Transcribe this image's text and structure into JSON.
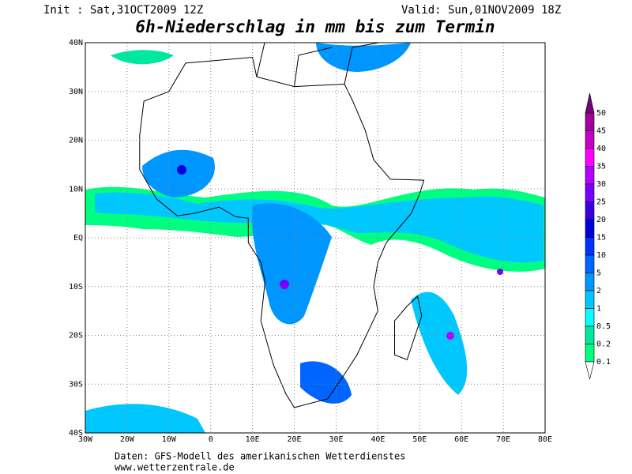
{
  "header": {
    "init": "Init : Sat,31OCT2009 12Z",
    "valid": "Valid: Sun,01NOV2009 18Z",
    "title": "6h-Niederschlag in mm bis zum Termin"
  },
  "map": {
    "x_labels": [
      "30W",
      "20W",
      "10W",
      "0",
      "10E",
      "20E",
      "30E",
      "40E",
      "50E",
      "60E",
      "70E",
      "80E"
    ],
    "y_labels": [
      "40N",
      "30N",
      "20N",
      "10N",
      "EQ",
      "10S",
      "20S",
      "30S",
      "40S"
    ]
  },
  "colorbar": {
    "labels": [
      "50",
      "45",
      "40",
      "35",
      "30",
      "25",
      "20",
      "15",
      "10",
      "5",
      "2",
      "1",
      "0.5",
      "0.2",
      "0.1"
    ],
    "colors": [
      "#780078",
      "#a000a0",
      "#c800c8",
      "#ff00ff",
      "#b400ff",
      "#7800ff",
      "#3c00dc",
      "#0000dc",
      "#0032ff",
      "#0064ff",
      "#0096ff",
      "#00c8ff",
      "#00ffff",
      "#00e8a0",
      "#00ff80",
      "#ffffff"
    ]
  },
  "footer": {
    "source": "Daten: GFS-Modell des amerikanischen Wetterdienstes",
    "url": "www.wetterzentrale.de"
  }
}
